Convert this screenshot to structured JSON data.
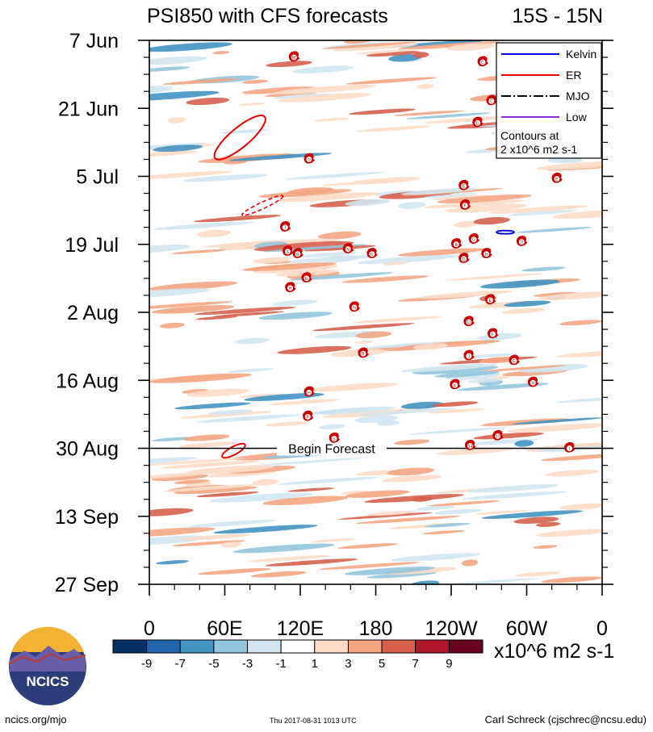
{
  "chart_data": {
    "type": "heatmap",
    "title_left": "PSI850 with CFS forecasts",
    "title_right": "15S - 15N",
    "x_ticks": [
      "0",
      "60E",
      "120E",
      "180",
      "120W",
      "60W",
      "0"
    ],
    "x_tick_values": [
      0,
      60,
      120,
      180,
      240,
      300,
      360
    ],
    "x_range": [
      0,
      360
    ],
    "y_ticks": [
      "7 Jun",
      "21 Jun",
      "5 Jul",
      "19 Jul",
      "2 Aug",
      "16 Aug",
      "30 Aug",
      "13 Sep",
      "27 Sep"
    ],
    "y_tick_days": [
      0,
      14,
      28,
      42,
      56,
      70,
      84,
      98,
      112
    ],
    "y_range_days": [
      0,
      112
    ],
    "forecast_start_day": 84,
    "forecast_label": "Begin Forecast",
    "legend": {
      "items": [
        {
          "label": "Kelvin",
          "color": "#0000ee",
          "style": "solid"
        },
        {
          "label": "ER",
          "color": "#ee0000",
          "style": "solid"
        },
        {
          "label": "MJO",
          "color": "#000000",
          "style": "dash-dot"
        },
        {
          "label": "Low",
          "color": "#8a2be2",
          "style": "solid"
        }
      ],
      "note": [
        "Contours at",
        "2 x10^6 m2 s-1"
      ]
    },
    "colorbar": {
      "colors": [
        "#053061",
        "#2166ac",
        "#4393c3",
        "#92c5de",
        "#d1e5f0",
        "#ffffff",
        "#fddbc7",
        "#f4a582",
        "#d6604d",
        "#b2182b",
        "#67001f"
      ],
      "labels": [
        "-9",
        "-7",
        "-5",
        "-3",
        "-1",
        "1",
        "3",
        "5",
        "7",
        "9"
      ],
      "units": "x10^6 m2 s-1"
    },
    "storms": [
      {
        "lon": 115,
        "day": 3.5,
        "label": "M"
      },
      {
        "lon": 265,
        "day": 4.5,
        "label": "C"
      },
      {
        "lon": 272,
        "day": 12.5,
        "label": "C"
      },
      {
        "lon": 261,
        "day": 17,
        "label": "D"
      },
      {
        "lon": 127,
        "day": 24.5,
        "label": "N"
      },
      {
        "lon": 324,
        "day": 28.5,
        "label": "E"
      },
      {
        "lon": 250,
        "day": 30,
        "label": "E"
      },
      {
        "lon": 251,
        "day": 34,
        "label": "F"
      },
      {
        "lon": 108,
        "day": 38.5,
        "label": "T"
      },
      {
        "lon": 296,
        "day": 41.5,
        "label": "D"
      },
      {
        "lon": 258,
        "day": 41,
        "label": "G"
      },
      {
        "lon": 244,
        "day": 42,
        "label": "B"
      },
      {
        "lon": 110,
        "day": 43.5,
        "label": "S"
      },
      {
        "lon": 118,
        "day": 44,
        "label": "R"
      },
      {
        "lon": 158,
        "day": 43,
        "label": "N"
      },
      {
        "lon": 177,
        "day": 44,
        "label": "K"
      },
      {
        "lon": 250,
        "day": 45,
        "label": "O"
      },
      {
        "lon": 268,
        "day": 44,
        "label": "H"
      },
      {
        "lon": 125,
        "day": 49,
        "label": "N"
      },
      {
        "lon": 112,
        "day": 51,
        "label": "H"
      },
      {
        "lon": 271,
        "day": 53.5,
        "label": "E"
      },
      {
        "lon": 163,
        "day": 55,
        "label": "N"
      },
      {
        "lon": 254,
        "day": 58,
        "label": "11"
      },
      {
        "lon": 273,
        "day": 60.5,
        "label": "F"
      },
      {
        "lon": 170,
        "day": 64.5,
        "label": "B"
      },
      {
        "lon": 254,
        "day": 65,
        "label": "J"
      },
      {
        "lon": 290,
        "day": 66,
        "label": "G"
      },
      {
        "lon": 243,
        "day": 71,
        "label": "K"
      },
      {
        "lon": 305,
        "day": 70.5,
        "label": "H"
      },
      {
        "lon": 127,
        "day": 72.5,
        "label": "H"
      },
      {
        "lon": 126,
        "day": 77.5,
        "label": "P"
      },
      {
        "lon": 147,
        "day": 82,
        "label": "S"
      },
      {
        "lon": 255,
        "day": 83.5,
        "label": "14"
      },
      {
        "lon": 277,
        "day": 81.5,
        "label": "10"
      },
      {
        "lon": 334,
        "day": 84,
        "label": "I"
      }
    ]
  },
  "footer": {
    "logo_text": "NCICS",
    "website": "ncics.org/mjo",
    "timestamp": "Thu 2017-08-31 1013 UTC",
    "author": "Carl Schreck (cjschrec@ncsu.edu)"
  },
  "colors": {
    "axis": "#000000",
    "er_contour": "#ee0000",
    "kelvin_contour": "#0000ee",
    "storm_marker": "#cc0000"
  }
}
